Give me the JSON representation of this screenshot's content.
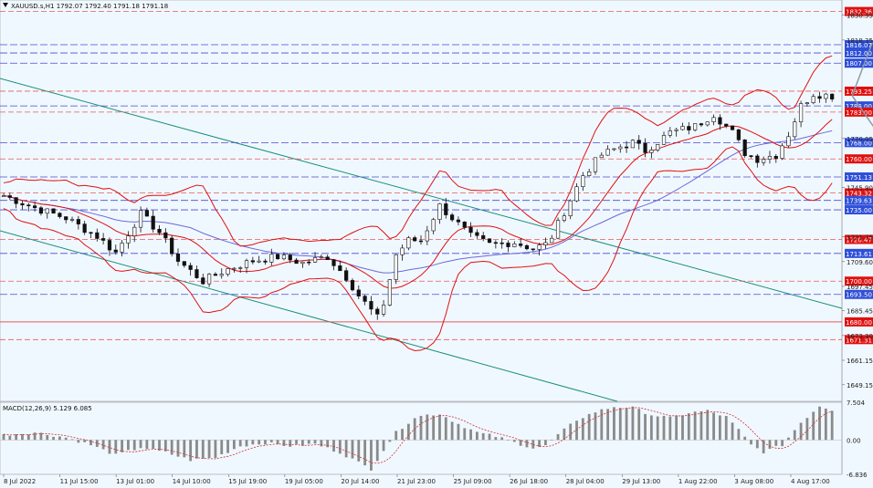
{
  "header": {
    "symbol_line": "XAUUSD.s,H1  1792.07 1792.40 1791.18 1791.18",
    "macd_label": "MACD(12,26,9) 5.129 6.085"
  },
  "colors": {
    "background": "#f0f8ff",
    "candle": "#111111",
    "bollinger": "#e01010",
    "ma": "#6a6ad8",
    "channel": "#1a8f7a",
    "level_red": "#e35a5a",
    "level_blue": "#4a4ad0",
    "tag_red": "#e01010",
    "tag_blue": "#2f4fd8",
    "macd_hist": "#8a8a8a",
    "macd_signal": "#d03030"
  },
  "chart_data": {
    "type": "candlestick",
    "instrument": "XAUUSD.s",
    "timeframe": "H1",
    "ohlc_last": {
      "open": 1792.07,
      "high": 1792.4,
      "low": 1791.18,
      "close": 1791.18
    },
    "ylim": [
      1641,
      1838
    ],
    "y_ticks": [
      "1830.55",
      "1818.35",
      "1770.05",
      "1745.90",
      "1721.75",
      "1709.60",
      "1697.45",
      "1685.45",
      "1673.30",
      "1661.15",
      "1649.15"
    ],
    "x_ticks": [
      "8 Jul 2022",
      "11 Jul 15:00",
      "13 Jul 01:00",
      "14 Jul 10:00",
      "15 Jul 19:00",
      "19 Jul 05:00",
      "20 Jul 14:00",
      "21 Jul 23:00",
      "25 Jul 09:00",
      "26 Jul 18:00",
      "28 Jul 04:00",
      "29 Jul 13:00",
      "1 Aug 22:00",
      "3 Aug 08:00",
      "4 Aug 17:00"
    ],
    "price_path": [
      [
        0,
        1742
      ],
      [
        5,
        1736
      ],
      [
        10,
        1731
      ],
      [
        15,
        1722
      ],
      [
        18,
        1714
      ],
      [
        22,
        1733
      ],
      [
        25,
        1724
      ],
      [
        28,
        1710
      ],
      [
        32,
        1700
      ],
      [
        36,
        1706
      ],
      [
        40,
        1710
      ],
      [
        44,
        1712
      ],
      [
        48,
        1709
      ],
      [
        52,
        1712
      ],
      [
        55,
        1702
      ],
      [
        57,
        1693
      ],
      [
        60,
        1682
      ],
      [
        61,
        1689
      ],
      [
        63,
        1713
      ],
      [
        65,
        1720
      ],
      [
        67,
        1720
      ],
      [
        70,
        1737
      ],
      [
        73,
        1728
      ],
      [
        75,
        1722
      ],
      [
        78,
        1718
      ],
      [
        82,
        1719
      ],
      [
        85,
        1716
      ],
      [
        87,
        1718
      ],
      [
        88,
        1722
      ],
      [
        90,
        1734
      ],
      [
        93,
        1752
      ],
      [
        96,
        1762
      ],
      [
        99,
        1766
      ],
      [
        101,
        1768
      ],
      [
        103,
        1764
      ],
      [
        107,
        1773
      ],
      [
        111,
        1776
      ],
      [
        114,
        1782
      ],
      [
        117,
        1773
      ],
      [
        119,
        1763
      ],
      [
        121,
        1760
      ],
      [
        124,
        1762
      ],
      [
        126,
        1772
      ],
      [
        128,
        1786
      ],
      [
        130,
        1792
      ],
      [
        133,
        1791
      ]
    ],
    "levels": [
      {
        "price": "1832.36",
        "kind": "red"
      },
      {
        "price": "1816.07",
        "kind": "blue"
      },
      {
        "price": "1812.00",
        "kind": "blue"
      },
      {
        "price": "1807.00",
        "kind": "blue"
      },
      {
        "price": "1793.25",
        "kind": "red"
      },
      {
        "price": "1786.00",
        "kind": "blue"
      },
      {
        "price": "1783.00",
        "kind": "red"
      },
      {
        "price": "1768.00",
        "kind": "blue"
      },
      {
        "price": "1760.00",
        "kind": "red"
      },
      {
        "price": "1751.13",
        "kind": "blue"
      },
      {
        "price": "1743.32",
        "kind": "red"
      },
      {
        "price": "1739.63",
        "kind": "blue"
      },
      {
        "price": "1735.00",
        "kind": "blue"
      },
      {
        "price": "1720.47",
        "kind": "red"
      },
      {
        "price": "1713.61",
        "kind": "blue"
      },
      {
        "price": "1700.00",
        "kind": "red"
      },
      {
        "price": "1693.50",
        "kind": "blue"
      },
      {
        "price": "1680.00",
        "kind": "red"
      },
      {
        "price": "1671.31",
        "kind": "red"
      }
    ],
    "macd": {
      "ylim": [
        -6.836,
        7.504
      ],
      "y_ticks": [
        "7.504",
        "0.00",
        "-6.836"
      ],
      "histogram": [
        [
          0,
          1
        ],
        [
          5,
          1.5
        ],
        [
          10,
          0.5
        ],
        [
          14,
          -1
        ],
        [
          18,
          -3
        ],
        [
          22,
          -1.5
        ],
        [
          26,
          -2.5
        ],
        [
          30,
          -4
        ],
        [
          34,
          -3.5
        ],
        [
          38,
          -1.2
        ],
        [
          42,
          -0.6
        ],
        [
          46,
          -1.2
        ],
        [
          50,
          -0.8
        ],
        [
          54,
          -2.5
        ],
        [
          57,
          -4.5
        ],
        [
          59,
          -5.8
        ],
        [
          61,
          -2
        ],
        [
          63,
          1.5
        ],
        [
          66,
          4.5
        ],
        [
          68,
          5
        ],
        [
          70,
          5.2
        ],
        [
          73,
          3.2
        ],
        [
          76,
          1.5
        ],
        [
          79,
          0.7
        ],
        [
          82,
          -0.5
        ],
        [
          85,
          -1.6
        ],
        [
          87,
          -1.2
        ],
        [
          89,
          1
        ],
        [
          92,
          4
        ],
        [
          95,
          5.6
        ],
        [
          98,
          6.6
        ],
        [
          101,
          6.4
        ],
        [
          104,
          5
        ],
        [
          107,
          4.4
        ],
        [
          110,
          5.4
        ],
        [
          113,
          5.8
        ],
        [
          116,
          4.6
        ],
        [
          118,
          2
        ],
        [
          120,
          -1
        ],
        [
          122,
          -2.4
        ],
        [
          125,
          -1
        ],
        [
          128,
          3.5
        ],
        [
          131,
          6.8
        ],
        [
          133,
          6
        ]
      ]
    }
  }
}
